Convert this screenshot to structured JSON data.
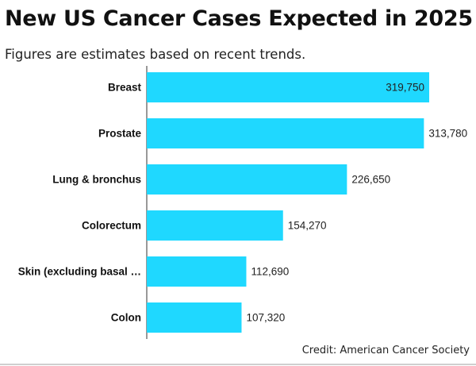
{
  "header": {
    "title": "New US Cancer Cases Expected in 2025",
    "subtitle": "Figures are estimates based on recent trends."
  },
  "footer": {
    "credit": "Credit: American Cancer Society"
  },
  "colors": {
    "bar": "#1fd8ff",
    "axis": "#333333"
  },
  "chart_data": {
    "type": "bar",
    "orientation": "horizontal",
    "title": "New US Cancer Cases Expected in 2025",
    "subtitle": "Figures are estimates based on recent trends.",
    "categories": [
      "Breast",
      "Prostate",
      "Lung & bronchus",
      "Colorectum",
      "Skin (excluding basal …",
      "Colon"
    ],
    "values": [
      319750,
      313780,
      226650,
      154270,
      112690,
      107320
    ],
    "value_labels": [
      "319,750",
      "313,780",
      "226,650",
      "154,270",
      "112,690",
      "107,320"
    ],
    "xlabel": "",
    "ylabel": "",
    "xlim": [
      0,
      319750
    ],
    "grid": false,
    "legend": "none"
  }
}
